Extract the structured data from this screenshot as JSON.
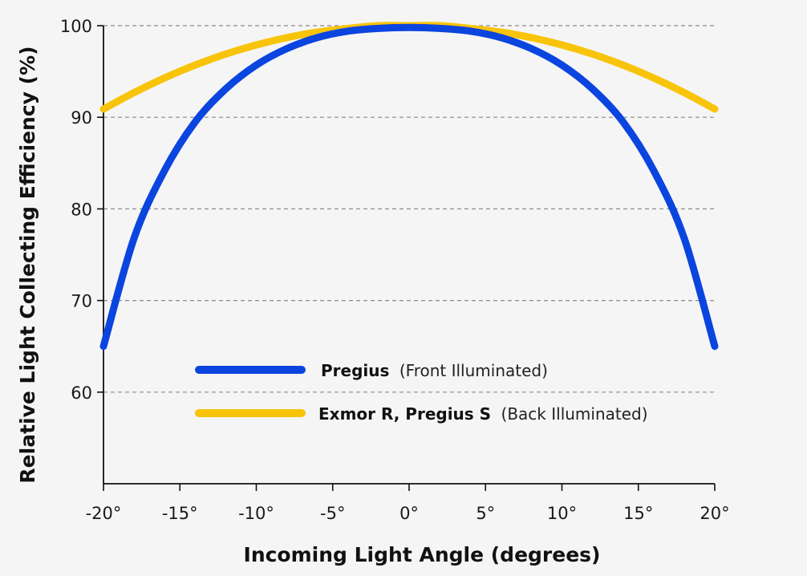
{
  "chart_data": {
    "type": "line",
    "xlabel": "Incoming Light Angle (degrees)",
    "ylabel": "Relative Light Collecting Efficiency (%)",
    "xlim": [
      -20,
      20
    ],
    "ylim": [
      50,
      100
    ],
    "x_ticks": [
      -20,
      -15,
      -10,
      -5,
      0,
      5,
      10,
      15,
      20
    ],
    "x_tick_labels": [
      "-20°",
      "-15°",
      "-10°",
      "-5°",
      "0°",
      "5°",
      "10°",
      "15°",
      "20°"
    ],
    "y_ticks": [
      60,
      70,
      80,
      90,
      100
    ],
    "y_tick_labels": [
      "60",
      "70",
      "80",
      "90",
      "100"
    ],
    "grid": "horizontal dashed",
    "legend_position": "lower-center",
    "x": [
      -20,
      -18,
      -16,
      -14,
      -12,
      -10,
      -8,
      -6,
      -4,
      -2,
      0,
      2,
      4,
      6,
      8,
      10,
      12,
      14,
      16,
      18,
      20
    ],
    "series": [
      {
        "name": "Pregius",
        "name_suffix": "(Front Illuminated)",
        "color": "#0b45df",
        "values": [
          65,
          76.8,
          84.2,
          89.5,
          93.1,
          95.7,
          97.5,
          98.7,
          99.4,
          99.7,
          99.8,
          99.7,
          99.4,
          98.7,
          97.5,
          95.7,
          93.1,
          89.5,
          84.2,
          76.8,
          65
        ]
      },
      {
        "name": "Exmor R, Pregius S",
        "name_suffix": "(Back Illuminated)",
        "color": "#f8c40a",
        "values": [
          90.9,
          92.7,
          94.3,
          95.7,
          96.9,
          97.9,
          98.7,
          99.3,
          99.7,
          100.0,
          100.0,
          100.0,
          99.7,
          99.3,
          98.7,
          97.9,
          96.9,
          95.7,
          94.3,
          92.7,
          90.9
        ]
      }
    ]
  }
}
